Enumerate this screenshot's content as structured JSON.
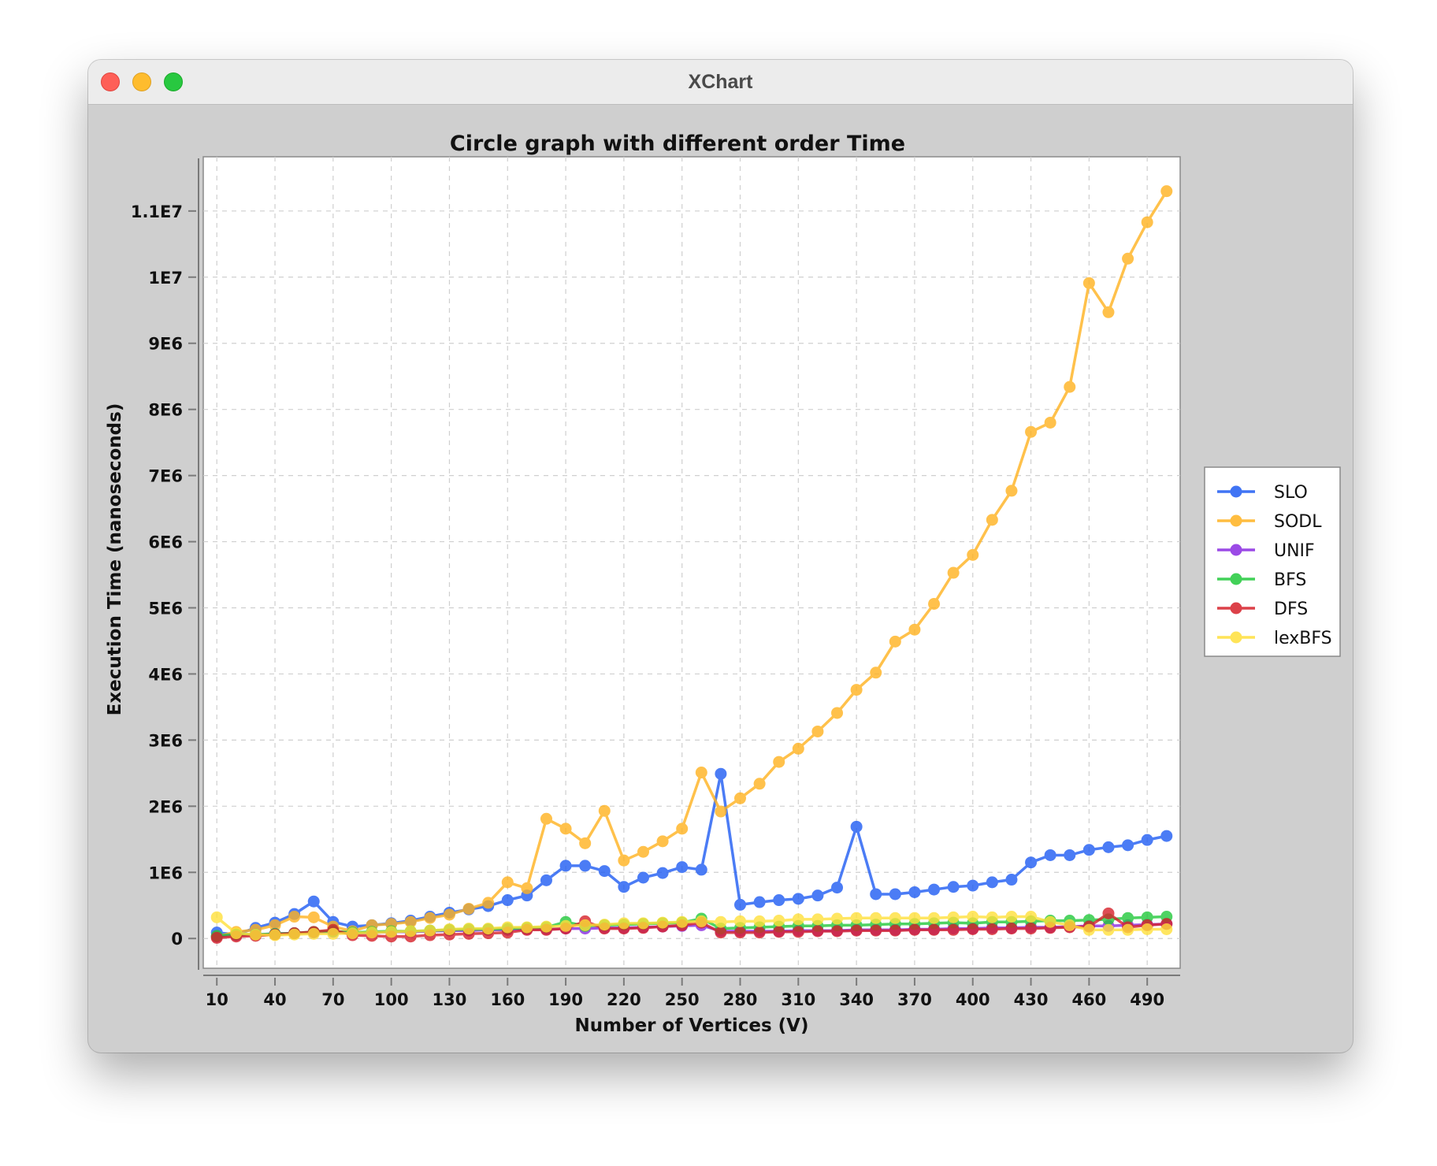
{
  "window": {
    "title": "XChart"
  },
  "chart_data": {
    "type": "line",
    "title": "Circle graph with different order Time",
    "xlabel": "Number of Vertices (V)",
    "ylabel": "Execution Time (nanoseconds)",
    "x": [
      10,
      20,
      30,
      40,
      50,
      60,
      70,
      80,
      90,
      100,
      110,
      120,
      130,
      140,
      150,
      160,
      170,
      180,
      190,
      200,
      210,
      220,
      230,
      240,
      250,
      260,
      270,
      280,
      290,
      300,
      310,
      320,
      330,
      340,
      350,
      360,
      370,
      380,
      390,
      400,
      410,
      420,
      430,
      440,
      450,
      460,
      470,
      480,
      490,
      500
    ],
    "x_ticks": [
      10,
      40,
      70,
      100,
      130,
      160,
      190,
      220,
      250,
      280,
      310,
      340,
      370,
      400,
      430,
      460,
      490
    ],
    "x_tick_labels": [
      "10",
      "40",
      "70",
      "100",
      "130",
      "160",
      "190",
      "220",
      "250",
      "280",
      "310",
      "340",
      "370",
      "400",
      "430",
      "460",
      "490"
    ],
    "y_ticks": [
      0,
      1000000,
      2000000,
      3000000,
      4000000,
      5000000,
      6000000,
      7000000,
      8000000,
      9000000,
      10000000,
      11000000
    ],
    "y_tick_labels": [
      "0",
      "1E6",
      "2E6",
      "3E6",
      "4E6",
      "5E6",
      "6E6",
      "7E6",
      "8E6",
      "9E6",
      "1E7",
      "1.1E7"
    ],
    "xlim": [
      3,
      507
    ],
    "ylim": [
      -450000,
      11820000
    ],
    "grid": true,
    "legend_position": "outside-right",
    "series": [
      {
        "name": "SLO",
        "color": "#1f5cf3",
        "values": [
          90000,
          60000,
          160000,
          240000,
          370000,
          560000,
          250000,
          180000,
          200000,
          230000,
          270000,
          330000,
          390000,
          440000,
          490000,
          580000,
          650000,
          880000,
          1100000,
          1100000,
          1020000,
          780000,
          920000,
          990000,
          1080000,
          1040000,
          2490000,
          510000,
          550000,
          580000,
          600000,
          650000,
          770000,
          1690000,
          670000,
          670000,
          700000,
          740000,
          780000,
          800000,
          850000,
          890000,
          1150000,
          1260000,
          1260000,
          1340000,
          1380000,
          1410000,
          1490000,
          1550000
        ]
      },
      {
        "name": "SODL",
        "color": "#ffb21f",
        "values": [
          30000,
          100000,
          130000,
          200000,
          330000,
          320000,
          180000,
          110000,
          200000,
          220000,
          250000,
          310000,
          360000,
          450000,
          540000,
          850000,
          760000,
          1810000,
          1660000,
          1440000,
          1930000,
          1180000,
          1310000,
          1470000,
          1660000,
          2510000,
          1920000,
          2120000,
          2340000,
          2670000,
          2870000,
          3130000,
          3410000,
          3760000,
          4020000,
          4490000,
          4670000,
          5060000,
          5530000,
          5800000,
          6330000,
          6770000,
          7660000,
          7800000,
          8340000,
          9910000,
          9470000,
          10280000,
          10830000,
          11300000
        ]
      },
      {
        "name": "UNIF",
        "color": "#8a2be2",
        "values": [
          30000,
          50000,
          60000,
          70000,
          80000,
          90000,
          100000,
          80000,
          90000,
          100000,
          100000,
          110000,
          120000,
          120000,
          130000,
          130000,
          140000,
          140000,
          150000,
          150000,
          160000,
          160000,
          170000,
          180000,
          190000,
          200000,
          110000,
          110000,
          110000,
          110000,
          120000,
          120000,
          120000,
          130000,
          130000,
          130000,
          140000,
          140000,
          150000,
          150000,
          160000,
          160000,
          170000,
          170000,
          180000,
          190000,
          190000,
          200000,
          210000,
          220000
        ]
      },
      {
        "name": "BFS",
        "color": "#22c93b",
        "values": [
          40000,
          60000,
          60000,
          70000,
          80000,
          100000,
          110000,
          90000,
          100000,
          110000,
          110000,
          120000,
          130000,
          140000,
          140000,
          150000,
          160000,
          170000,
          250000,
          190000,
          200000,
          210000,
          220000,
          230000,
          240000,
          300000,
          150000,
          160000,
          170000,
          180000,
          190000,
          190000,
          200000,
          200000,
          210000,
          220000,
          220000,
          230000,
          240000,
          230000,
          250000,
          250000,
          260000,
          270000,
          270000,
          280000,
          290000,
          310000,
          320000,
          330000
        ]
      },
      {
        "name": "DFS",
        "color": "#d6212a",
        "values": [
          10000,
          30000,
          40000,
          60000,
          80000,
          100000,
          130000,
          50000,
          40000,
          30000,
          30000,
          50000,
          60000,
          70000,
          80000,
          90000,
          130000,
          130000,
          150000,
          260000,
          150000,
          150000,
          160000,
          180000,
          200000,
          240000,
          90000,
          90000,
          90000,
          100000,
          100000,
          110000,
          110000,
          120000,
          120000,
          120000,
          130000,
          130000,
          130000,
          140000,
          140000,
          150000,
          150000,
          160000,
          170000,
          180000,
          380000,
          170000,
          200000,
          220000
        ]
      },
      {
        "name": "lexBFS",
        "color": "#ffe03a",
        "values": [
          320000,
          80000,
          60000,
          50000,
          60000,
          70000,
          70000,
          80000,
          90000,
          100000,
          110000,
          120000,
          140000,
          150000,
          150000,
          170000,
          170000,
          180000,
          190000,
          200000,
          210000,
          230000,
          230000,
          240000,
          250000,
          260000,
          250000,
          260000,
          260000,
          270000,
          290000,
          290000,
          300000,
          310000,
          310000,
          310000,
          310000,
          310000,
          320000,
          330000,
          320000,
          330000,
          330000,
          250000,
          200000,
          130000,
          130000,
          130000,
          140000,
          140000
        ]
      }
    ]
  }
}
